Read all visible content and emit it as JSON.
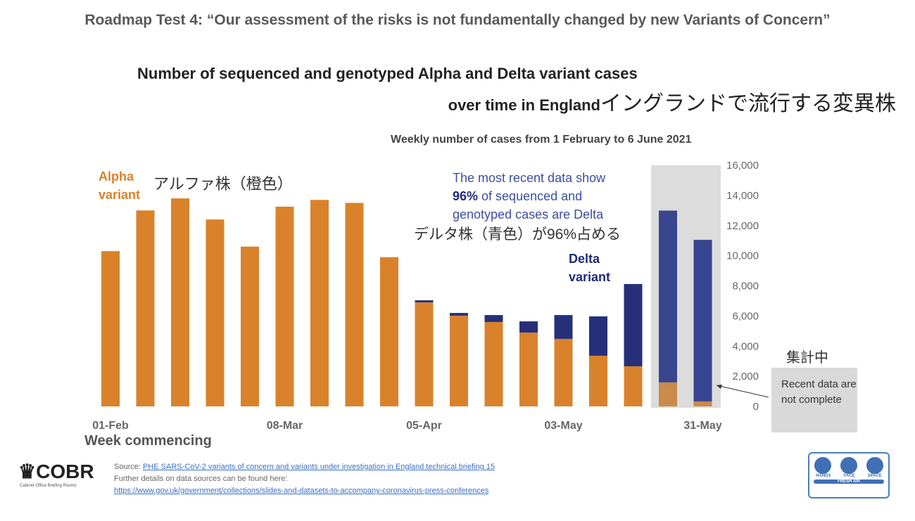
{
  "title": "Roadmap Test 4: “Our assessment of the risks is not fundamentally changed by new Variants of Concern”",
  "chart_title_line1": "Number of sequenced and genotyped Alpha and Delta variant cases",
  "chart_title_line2": "over time in England",
  "chart_title_jp": "イングランドで流行する変異株",
  "subtitle": "Weekly number of cases from 1 February to 6 June 2021",
  "alpha_label": "Alpha variant",
  "alpha_label_jp": "アルファ株（橙色）",
  "note_line1": "The most recent data show",
  "note_pct": "96%",
  "note_line2": " of sequenced and",
  "note_line3": "genotyped cases are Delta",
  "delta_label_jp": "デルタ株（青色）が96%占める",
  "delta_label": "Delta variant",
  "pending_jp": "集計中",
  "incomplete_note": "Recent data are not complete",
  "footer": {
    "logo": "COBR",
    "logo_sub": "Cabinet Office Briefing Rooms",
    "source_prefix": "Source: ",
    "source_link": "PHE SARS-CoV-2 variants of concern and variants under investigation in England technical briefing 15",
    "further": "Further details on data sources can be found here:",
    "url": "https://www.gov.uk/government/collections/slides-and-datasets-to-accompany-coronavirus-press-conferences",
    "badge": [
      "HANDS",
      "FACE",
      "SPACE",
      "FRESH AIR"
    ]
  },
  "chart_data": {
    "type": "bar",
    "stacked": true,
    "xlabel": "Week commencing",
    "ylabel": "",
    "ylim": [
      0,
      16000
    ],
    "yticks": [
      "0",
      "2,000",
      "4,000",
      "6,000",
      "8,000",
      "10,000",
      "12,000",
      "14,000",
      "16,000"
    ],
    "ytick_values": [
      0,
      2000,
      4000,
      6000,
      8000,
      10000,
      12000,
      14000,
      16000
    ],
    "yaxis_side": "right",
    "grid": false,
    "categories": [
      "01-Feb",
      "08-Feb",
      "15-Feb",
      "22-Feb",
      "01-Mar",
      "08-Mar",
      "15-Mar",
      "22-Mar",
      "29-Mar",
      "05-Apr",
      "12-Apr",
      "19-Apr",
      "26-Apr",
      "03-May",
      "10-May",
      "17-May",
      "24-May",
      "31-May"
    ],
    "xtick_labels": {
      "0": "01-Feb",
      "5": "08-Mar",
      "9": "05-Apr",
      "13": "03-May",
      "17": "31-May"
    },
    "incomplete_from_index": 16,
    "series": [
      {
        "name": "Alpha variant",
        "color": "#d9822b",
        "values": [
          10300,
          13000,
          13800,
          12400,
          10600,
          13250,
          13700,
          13500,
          9900,
          6900,
          6020,
          5600,
          4900,
          4480,
          3360,
          2660,
          1590,
          330
        ]
      },
      {
        "name": "Delta variant",
        "color": "#26307a",
        "values": [
          0,
          0,
          0,
          0,
          0,
          0,
          0,
          0,
          0,
          140,
          180,
          460,
          740,
          1580,
          2610,
          5460,
          11400,
          10720
        ]
      }
    ],
    "incomplete_colors": {
      "alpha": "#c98a4a",
      "delta": "#3a4590",
      "shade": "#dcdcdc"
    }
  }
}
